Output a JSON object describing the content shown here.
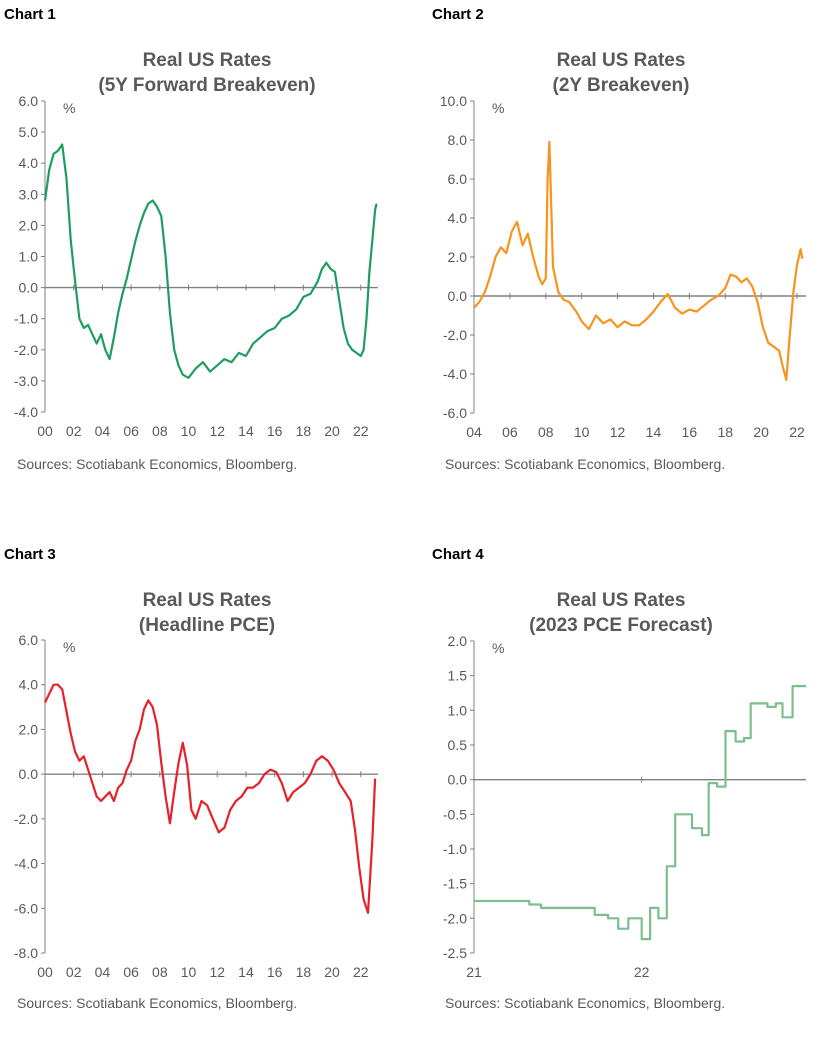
{
  "chart_data": [
    {
      "type": "line",
      "label": "Chart 1",
      "title": [
        "Real US Rates",
        "(5Y Forward Breakeven)"
      ],
      "ylabel": "%",
      "yticks": [
        "6.0",
        "5.0",
        "4.0",
        "3.0",
        "2.0",
        "1.0",
        "0.0",
        "-1.0",
        "-2.0",
        "-3.0",
        "-4.0"
      ],
      "xticks": [
        "00",
        "02",
        "04",
        "06",
        "08",
        "10",
        "12",
        "14",
        "16",
        "18",
        "20",
        "22"
      ],
      "xlim": [
        2000,
        2023.2
      ],
      "ylim": [
        -4,
        6
      ],
      "color": "#1e9e5e",
      "source": "Sources: Scotiabank Economics, Bloomberg.",
      "series": [
        {
          "x": [
            2000.0,
            2000.3,
            2000.6,
            2000.9,
            2001.2,
            2001.5,
            2001.8,
            2002.1,
            2002.4,
            2002.7,
            2003.0,
            2003.3,
            2003.6,
            2003.9,
            2004.2,
            2004.5,
            2004.8,
            2005.1,
            2005.4,
            2005.7,
            2006.0,
            2006.3,
            2006.6,
            2006.9,
            2007.2,
            2007.5,
            2007.8,
            2008.1,
            2008.4,
            2008.7,
            2009.0,
            2009.3,
            2009.6,
            2010.0,
            2010.5,
            2011.0,
            2011.5,
            2012.0,
            2012.5,
            2013.0,
            2013.5,
            2014.0,
            2014.5,
            2015.0,
            2015.5,
            2016.0,
            2016.5,
            2017.0,
            2017.5,
            2018.0,
            2018.5,
            2019.0,
            2019.3,
            2019.6,
            2019.9,
            2020.2,
            2020.5,
            2020.8,
            2021.1,
            2021.4,
            2021.7,
            2022.0,
            2022.2,
            2022.4,
            2022.6,
            2022.8,
            2023.0,
            2023.1
          ],
          "y": [
            2.8,
            3.8,
            4.3,
            4.4,
            4.6,
            3.5,
            1.5,
            0.2,
            -1.0,
            -1.3,
            -1.2,
            -1.5,
            -1.8,
            -1.5,
            -2.0,
            -2.3,
            -1.6,
            -0.8,
            -0.2,
            0.3,
            0.9,
            1.5,
            2.0,
            2.4,
            2.7,
            2.8,
            2.6,
            2.3,
            1.0,
            -0.8,
            -2.0,
            -2.5,
            -2.8,
            -2.9,
            -2.6,
            -2.4,
            -2.7,
            -2.5,
            -2.3,
            -2.4,
            -2.1,
            -2.2,
            -1.8,
            -1.6,
            -1.4,
            -1.3,
            -1.0,
            -0.9,
            -0.7,
            -0.3,
            -0.2,
            0.2,
            0.6,
            0.8,
            0.6,
            0.5,
            -0.4,
            -1.3,
            -1.8,
            -2.0,
            -2.1,
            -2.2,
            -2.0,
            -1.0,
            0.5,
            1.5,
            2.5,
            2.7
          ]
        }
      ]
    },
    {
      "type": "line",
      "label": "Chart 2",
      "title": [
        "Real US Rates",
        "(2Y Breakeven)"
      ],
      "ylabel": "%",
      "yticks": [
        "10.0",
        "8.0",
        "6.0",
        "4.0",
        "2.0",
        "0.0",
        "-2.0",
        "-4.0",
        "-6.0"
      ],
      "xticks": [
        "04",
        "06",
        "08",
        "10",
        "12",
        "14",
        "16",
        "18",
        "20",
        "22"
      ],
      "xlim": [
        2004,
        2022.5
      ],
      "ylim": [
        -6,
        10
      ],
      "color": "#f7931e",
      "source": "Sources: Scotiabank Economics, Bloomberg.",
      "series": [
        {
          "x": [
            2004.0,
            2004.3,
            2004.6,
            2004.9,
            2005.2,
            2005.5,
            2005.8,
            2006.1,
            2006.4,
            2006.7,
            2007.0,
            2007.3,
            2007.6,
            2007.8,
            2008.0,
            2008.1,
            2008.2,
            2008.4,
            2008.7,
            2009.0,
            2009.3,
            2009.7,
            2010.0,
            2010.4,
            2010.8,
            2011.2,
            2011.6,
            2012.0,
            2012.4,
            2012.8,
            2013.2,
            2013.6,
            2014.0,
            2014.4,
            2014.8,
            2015.2,
            2015.6,
            2016.0,
            2016.4,
            2016.8,
            2017.2,
            2017.6,
            2018.0,
            2018.3,
            2018.6,
            2018.9,
            2019.2,
            2019.5,
            2019.8,
            2020.1,
            2020.4,
            2020.7,
            2021.0,
            2021.2,
            2021.4,
            2021.6,
            2021.8,
            2022.0,
            2022.2,
            2022.3
          ],
          "y": [
            -0.6,
            -0.3,
            0.2,
            1.0,
            2.0,
            2.5,
            2.2,
            3.3,
            3.8,
            2.6,
            3.2,
            2.0,
            1.0,
            0.6,
            0.9,
            6.0,
            7.9,
            1.5,
            0.2,
            -0.2,
            -0.3,
            -0.8,
            -1.3,
            -1.7,
            -1.0,
            -1.4,
            -1.2,
            -1.6,
            -1.3,
            -1.5,
            -1.5,
            -1.2,
            -0.8,
            -0.3,
            0.1,
            -0.6,
            -0.9,
            -0.7,
            -0.8,
            -0.5,
            -0.2,
            0.0,
            0.4,
            1.1,
            1.0,
            0.7,
            0.9,
            0.5,
            -0.3,
            -1.6,
            -2.4,
            -2.6,
            -2.8,
            -3.6,
            -4.3,
            -2.0,
            0.2,
            1.6,
            2.4,
            1.9
          ]
        }
      ]
    },
    {
      "type": "line",
      "label": "Chart 3",
      "title": [
        "Real US Rates",
        "(Headline PCE)"
      ],
      "ylabel": "%",
      "yticks": [
        "6.0",
        "4.0",
        "2.0",
        "0.0",
        "-2.0",
        "-4.0",
        "-6.0",
        "-8.0"
      ],
      "xticks": [
        "00",
        "02",
        "04",
        "06",
        "08",
        "10",
        "12",
        "14",
        "16",
        "18",
        "20",
        "22"
      ],
      "xlim": [
        2000,
        2023.2
      ],
      "ylim": [
        -8,
        6
      ],
      "color": "#e8202a",
      "source": "Sources: Scotiabank Economics, Bloomberg.",
      "series": [
        {
          "x": [
            2000.0,
            2000.3,
            2000.6,
            2000.9,
            2001.2,
            2001.5,
            2001.8,
            2002.1,
            2002.4,
            2002.7,
            2003.0,
            2003.3,
            2003.6,
            2003.9,
            2004.2,
            2004.5,
            2004.8,
            2005.1,
            2005.4,
            2005.7,
            2006.0,
            2006.3,
            2006.6,
            2006.9,
            2007.2,
            2007.5,
            2007.8,
            2008.1,
            2008.4,
            2008.7,
            2009.0,
            2009.3,
            2009.6,
            2009.9,
            2010.2,
            2010.5,
            2010.9,
            2011.3,
            2011.7,
            2012.1,
            2012.5,
            2012.9,
            2013.3,
            2013.7,
            2014.1,
            2014.5,
            2014.9,
            2015.3,
            2015.7,
            2016.1,
            2016.5,
            2016.9,
            2017.3,
            2017.7,
            2018.1,
            2018.5,
            2018.9,
            2019.3,
            2019.7,
            2020.1,
            2020.5,
            2020.9,
            2021.3,
            2021.6,
            2021.9,
            2022.2,
            2022.5,
            2022.8,
            2023.0
          ],
          "y": [
            3.2,
            3.6,
            4.0,
            4.0,
            3.8,
            2.8,
            1.8,
            1.0,
            0.6,
            0.8,
            0.2,
            -0.4,
            -1.0,
            -1.2,
            -1.0,
            -0.8,
            -1.2,
            -0.6,
            -0.4,
            0.2,
            0.6,
            1.5,
            2.0,
            2.9,
            3.3,
            3.0,
            2.2,
            0.5,
            -1.0,
            -2.2,
            -0.8,
            0.5,
            1.4,
            0.4,
            -1.6,
            -2.0,
            -1.2,
            -1.4,
            -2.0,
            -2.6,
            -2.4,
            -1.6,
            -1.2,
            -1.0,
            -0.6,
            -0.6,
            -0.4,
            0.0,
            0.2,
            0.1,
            -0.4,
            -1.2,
            -0.8,
            -0.6,
            -0.4,
            0.0,
            0.6,
            0.8,
            0.6,
            0.2,
            -0.4,
            -0.8,
            -1.2,
            -2.5,
            -4.2,
            -5.6,
            -6.2,
            -3.0,
            -0.2
          ]
        }
      ]
    },
    {
      "type": "line",
      "label": "Chart 4",
      "title": [
        "Real US Rates",
        "(2023 PCE Forecast)"
      ],
      "ylabel": "%",
      "yticks": [
        "2.0",
        "1.5",
        "1.0",
        "0.5",
        "0.0",
        "-0.5",
        "-1.0",
        "-1.5",
        "-2.0",
        "-2.5"
      ],
      "xticks": [
        "21",
        "22"
      ],
      "xlim": [
        2021.0,
        2022.98
      ],
      "ylim": [
        -2.5,
        2.0
      ],
      "color": "#7cbf8c",
      "source": "Sources: Scotiabank Economics, Bloomberg.",
      "series": [
        {
          "x": [
            2021.0,
            2021.33,
            2021.33,
            2021.4,
            2021.4,
            2021.72,
            2021.72,
            2021.8,
            2021.8,
            2021.86,
            2021.86,
            2021.92,
            2021.92,
            2022.0,
            2022.0,
            2022.05,
            2022.05,
            2022.1,
            2022.1,
            2022.15,
            2022.15,
            2022.2,
            2022.2,
            2022.3,
            2022.3,
            2022.36,
            2022.36,
            2022.4,
            2022.4,
            2022.45,
            2022.45,
            2022.5,
            2022.5,
            2022.56,
            2022.56,
            2022.61,
            2022.61,
            2022.65,
            2022.65,
            2022.75,
            2022.75,
            2022.8,
            2022.8,
            2022.84,
            2022.84,
            2022.9,
            2022.9,
            2022.95,
            2022.95,
            2022.98
          ],
          "y": [
            -1.75,
            -1.75,
            -1.8,
            -1.8,
            -1.85,
            -1.85,
            -1.95,
            -1.95,
            -2.0,
            -2.0,
            -2.15,
            -2.15,
            -2.0,
            -2.0,
            -2.3,
            -2.3,
            -1.85,
            -1.85,
            -2.0,
            -2.0,
            -1.25,
            -1.25,
            -0.5,
            -0.5,
            -0.7,
            -0.7,
            -0.8,
            -0.8,
            -0.05,
            -0.05,
            -0.1,
            -0.1,
            0.7,
            0.7,
            0.55,
            0.55,
            0.6,
            0.6,
            1.1,
            1.1,
            1.05,
            1.05,
            1.1,
            1.1,
            0.9,
            0.9,
            1.35,
            1.35,
            1.35,
            1.35
          ]
        }
      ]
    }
  ]
}
